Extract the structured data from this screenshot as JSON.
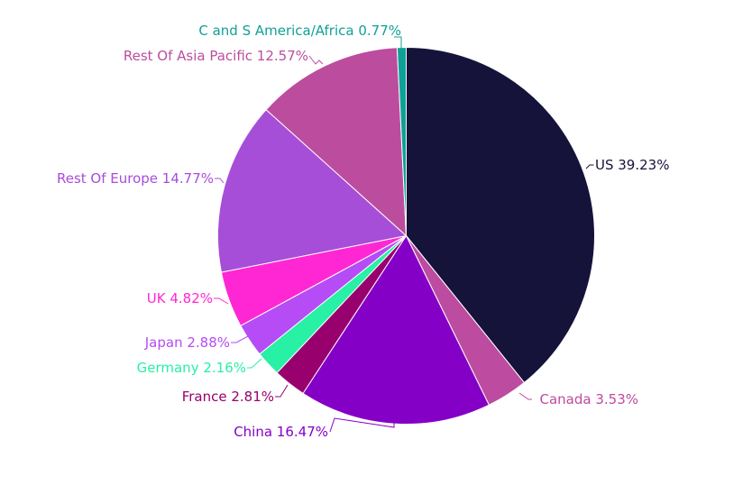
{
  "chart_data": {
    "type": "pie",
    "title": "",
    "slices": [
      {
        "label": "US",
        "value": 39.23,
        "display": "US 39.23%",
        "color": "#15133a"
      },
      {
        "label": "Canada",
        "value": 3.53,
        "display": "Canada 3.53%",
        "color": "#bd4b9f"
      },
      {
        "label": "China",
        "value": 16.47,
        "display": "China 16.47%",
        "color": "#8500c6"
      },
      {
        "label": "France",
        "value": 2.81,
        "display": "France 2.81%",
        "color": "#98006e"
      },
      {
        "label": "Germany",
        "value": 2.16,
        "display": "Germany 2.16%",
        "color": "#28f0a4"
      },
      {
        "label": "Japan",
        "value": 2.88,
        "display": "Japan 2.88%",
        "color": "#b54cf5"
      },
      {
        "label": "UK",
        "value": 4.82,
        "display": "UK 4.82%",
        "color": "#ff27d3"
      },
      {
        "label": "Rest Of Europe",
        "value": 14.77,
        "display": "Rest Of Europe 14.77%",
        "color": "#a74ed8"
      },
      {
        "label": "Rest Of Asia Pacific",
        "value": 12.57,
        "display": "Rest Of Asia Pacific 12.57%",
        "color": "#bc4d9e"
      },
      {
        "label": "C and S America/Africa",
        "value": 0.77,
        "display": "C and S America/Africa 0.77%",
        "color": "#10a196"
      }
    ]
  }
}
